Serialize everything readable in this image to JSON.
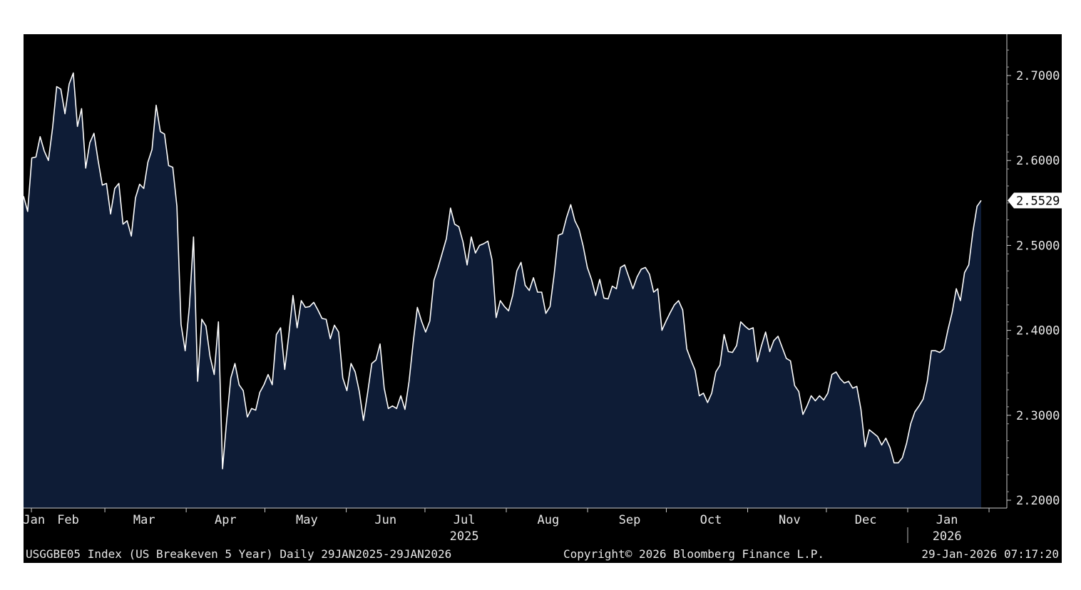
{
  "colors": {
    "background": "#000000",
    "fill": "#0e1c36",
    "line": "#ffffff",
    "text": "#e8e8e8",
    "last_label_bg": "#ffffff",
    "last_label_text": "#000000"
  },
  "chart_data": {
    "type": "area",
    "title": "USGGBE05 Index (US Breakeven 5 Year) Daily 29JAN2025-29JAN2026",
    "footer_left": "USGGBE05 Index (US Breakeven 5 Year) Daily 29JAN2025-29JAN2026",
    "footer_center": "Copyright© 2026 Bloomberg Finance L.P.",
    "footer_right": "29-Jan-2026 07:17:20",
    "x_unit": "days since 29-Jan-2025",
    "xlim": [
      0,
      365
    ],
    "ylim": [
      2.19,
      2.75
    ],
    "y_ticks": [
      {
        "value": 2.7,
        "label": "2.7000"
      },
      {
        "value": 2.6,
        "label": "2.6000"
      },
      {
        "value": 2.5,
        "label": "2.5000"
      },
      {
        "value": 2.4,
        "label": "2.4000"
      },
      {
        "value": 2.3,
        "label": "2.3000"
      },
      {
        "value": 2.2,
        "label": "2.2000"
      }
    ],
    "last_value": {
      "value": 2.5529,
      "label": "2.5529"
    },
    "month_ticks": [
      3,
      31,
      62,
      92,
      123,
      153,
      184,
      215,
      245,
      276,
      306,
      337,
      368
    ],
    "month_labels": [
      {
        "day": 4,
        "label": "Jan"
      },
      {
        "day": 17,
        "label": "Feb"
      },
      {
        "day": 46,
        "label": "Mar"
      },
      {
        "day": 77,
        "label": "Apr"
      },
      {
        "day": 108,
        "label": "May"
      },
      {
        "day": 138,
        "label": "Jun"
      },
      {
        "day": 168,
        "label": "Jul"
      },
      {
        "day": 200,
        "label": "Aug"
      },
      {
        "day": 231,
        "label": "Sep"
      },
      {
        "day": 262,
        "label": "Oct"
      },
      {
        "day": 292,
        "label": "Nov"
      },
      {
        "day": 321,
        "label": "Dec"
      },
      {
        "day": 352,
        "label": "Jan"
      }
    ],
    "year_labels": [
      {
        "day": 168,
        "label": "2025"
      },
      {
        "day": 352,
        "label": "2026"
      }
    ],
    "year_separator_day": 337,
    "series": [
      {
        "name": "US Breakeven 5 Year",
        "values": [
          2.558,
          2.54,
          2.603,
          2.604,
          2.628,
          2.611,
          2.6,
          2.638,
          2.687,
          2.684,
          2.655,
          2.69,
          2.703,
          2.64,
          2.661,
          2.591,
          2.621,
          2.632,
          2.6,
          2.571,
          2.573,
          2.537,
          2.567,
          2.573,
          2.525,
          2.529,
          2.511,
          2.556,
          2.572,
          2.567,
          2.598,
          2.613,
          2.665,
          2.634,
          2.631,
          2.594,
          2.592,
          2.546,
          2.407,
          2.376,
          2.428,
          2.51,
          2.34,
          2.413,
          2.405,
          2.369,
          2.348,
          2.41,
          2.237,
          2.294,
          2.344,
          2.361,
          2.336,
          2.329,
          2.298,
          2.308,
          2.306,
          2.327,
          2.336,
          2.348,
          2.336,
          2.395,
          2.403,
          2.354,
          2.395,
          2.441,
          2.403,
          2.435,
          2.427,
          2.428,
          2.433,
          2.424,
          2.414,
          2.413,
          2.39,
          2.406,
          2.398,
          2.344,
          2.329,
          2.361,
          2.351,
          2.328,
          2.294,
          2.326,
          2.361,
          2.365,
          2.384,
          2.332,
          2.308,
          2.311,
          2.308,
          2.323,
          2.307,
          2.34,
          2.386,
          2.427,
          2.411,
          2.398,
          2.411,
          2.459,
          2.474,
          2.491,
          2.508,
          2.544,
          2.525,
          2.522,
          2.504,
          2.477,
          2.51,
          2.491,
          2.5,
          2.502,
          2.505,
          2.483,
          2.415,
          2.435,
          2.428,
          2.423,
          2.441,
          2.47,
          2.48,
          2.453,
          2.447,
          2.462,
          2.445,
          2.445,
          2.42,
          2.428,
          2.466,
          2.512,
          2.514,
          2.533,
          2.548,
          2.529,
          2.519,
          2.499,
          2.474,
          2.46,
          2.441,
          2.46,
          2.438,
          2.437,
          2.452,
          2.449,
          2.474,
          2.477,
          2.463,
          2.449,
          2.463,
          2.472,
          2.474,
          2.466,
          2.445,
          2.449,
          2.4,
          2.411,
          2.421,
          2.43,
          2.435,
          2.424,
          2.378,
          2.365,
          2.353,
          2.323,
          2.326,
          2.315,
          2.326,
          2.351,
          2.359,
          2.395,
          2.375,
          2.374,
          2.382,
          2.41,
          2.405,
          2.401,
          2.403,
          2.363,
          2.382,
          2.398,
          2.375,
          2.388,
          2.393,
          2.38,
          2.367,
          2.364,
          2.335,
          2.328,
          2.301,
          2.311,
          2.323,
          2.317,
          2.323,
          2.318,
          2.326,
          2.348,
          2.351,
          2.343,
          2.338,
          2.34,
          2.332,
          2.334,
          2.307,
          2.263,
          2.283,
          2.279,
          2.275,
          2.265,
          2.273,
          2.262,
          2.244,
          2.244,
          2.25,
          2.267,
          2.29,
          2.304,
          2.311,
          2.319,
          2.34,
          2.376,
          2.376,
          2.374,
          2.378,
          2.401,
          2.421,
          2.449,
          2.435,
          2.468,
          2.477,
          2.516,
          2.546,
          2.5529
        ]
      }
    ]
  }
}
